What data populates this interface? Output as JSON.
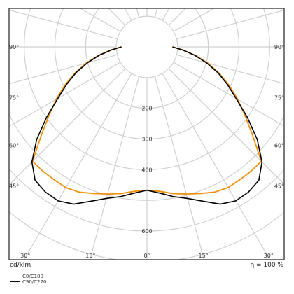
{
  "chart_data": {
    "type": "polar",
    "title": "",
    "unit_label": "cd/klm",
    "efficiency_label": "η = 100 %",
    "radial_ticks": [
      200,
      300,
      400,
      600
    ],
    "radial_range": [
      0,
      700
    ],
    "grid_rings": [
      100,
      200,
      300,
      400,
      500,
      600,
      700
    ],
    "grid": true,
    "angle_labels_side": [
      "90°",
      "75°",
      "60°",
      "45°"
    ],
    "side_label_angles": [
      90,
      75,
      60,
      45
    ],
    "angle_labels_bottom": [
      "30°",
      "15°",
      "0°",
      "15°",
      "30°"
    ],
    "bottom_label_angles": [
      -30,
      -15,
      0,
      15,
      30
    ],
    "series": [
      {
        "name": "C0/C180",
        "color": "#f0900c",
        "points": [
          [
            0,
            467
          ],
          [
            5,
            472
          ],
          [
            10,
            485
          ],
          [
            15,
            496
          ],
          [
            20,
            508
          ],
          [
            25,
            522
          ],
          [
            30,
            529
          ],
          [
            35,
            528
          ],
          [
            40,
            528
          ],
          [
            45,
            527
          ],
          [
            50,
            450
          ],
          [
            55,
            390
          ],
          [
            60,
            341
          ],
          [
            65,
            295
          ],
          [
            70,
            250
          ],
          [
            75,
            206
          ],
          [
            80,
            160
          ],
          [
            85,
            118
          ],
          [
            90,
            83
          ]
        ]
      },
      {
        "name": "C90/C270",
        "color": "#000000",
        "points": [
          [
            0,
            467
          ],
          [
            5,
            478
          ],
          [
            10,
            495
          ],
          [
            15,
            511
          ],
          [
            20,
            535
          ],
          [
            25,
            565
          ],
          [
            30,
            579
          ],
          [
            35,
            577
          ],
          [
            40,
            567
          ],
          [
            45,
            530
          ],
          [
            50,
            469
          ],
          [
            55,
            399
          ],
          [
            60,
            335
          ],
          [
            65,
            289
          ],
          [
            70,
            246
          ],
          [
            75,
            201
          ],
          [
            80,
            158
          ],
          [
            85,
            117
          ],
          [
            90,
            83
          ]
        ]
      }
    ]
  },
  "legend": {
    "items": [
      {
        "label": "C0/C180",
        "color": "#f0900c"
      },
      {
        "label": "C90/C270",
        "color": "#000000"
      }
    ]
  }
}
